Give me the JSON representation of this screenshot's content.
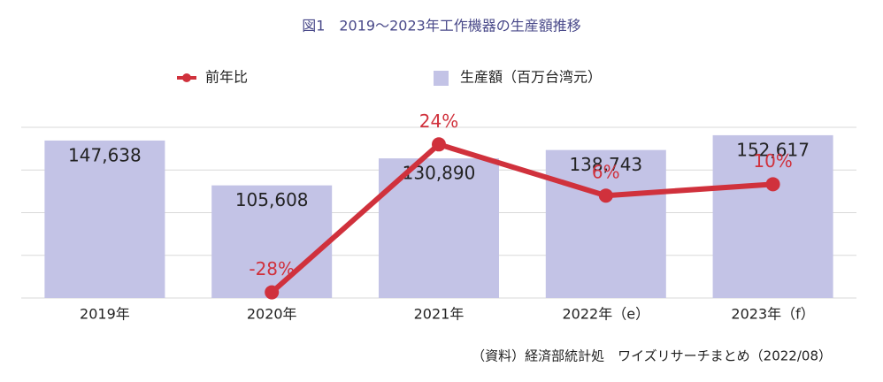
{
  "chart_data": {
    "type": "bar_line",
    "title": "図1　2019～2023年工作機器の生産額推移",
    "source": "（資料）経済部統計処　ワイズリサーチまとめ（2022/08）",
    "categories": [
      "2019年",
      "2020年",
      "2021年",
      "2022年（e）",
      "2023年（f）"
    ],
    "series": [
      {
        "name": "生産額（百万台湾元）",
        "type": "bar",
        "color": "#c3c3e6",
        "values": [
          147638,
          105608,
          130890,
          138743,
          152617
        ],
        "value_labels": [
          "147,638",
          "105,608",
          "130,890",
          "138,743",
          "152,617"
        ]
      },
      {
        "name": "前年比",
        "type": "line",
        "axis": "y2",
        "color": "#d0313c",
        "values": [
          null,
          -28,
          24,
          6,
          10
        ],
        "value_labels": [
          null,
          "-28%",
          "24%",
          "6%",
          "10%"
        ]
      }
    ],
    "ylim": [
      0,
      160000
    ],
    "yticks": [
      0,
      40000,
      80000,
      120000,
      160000
    ],
    "y2lim": [
      -30,
      30
    ],
    "grid": true
  }
}
